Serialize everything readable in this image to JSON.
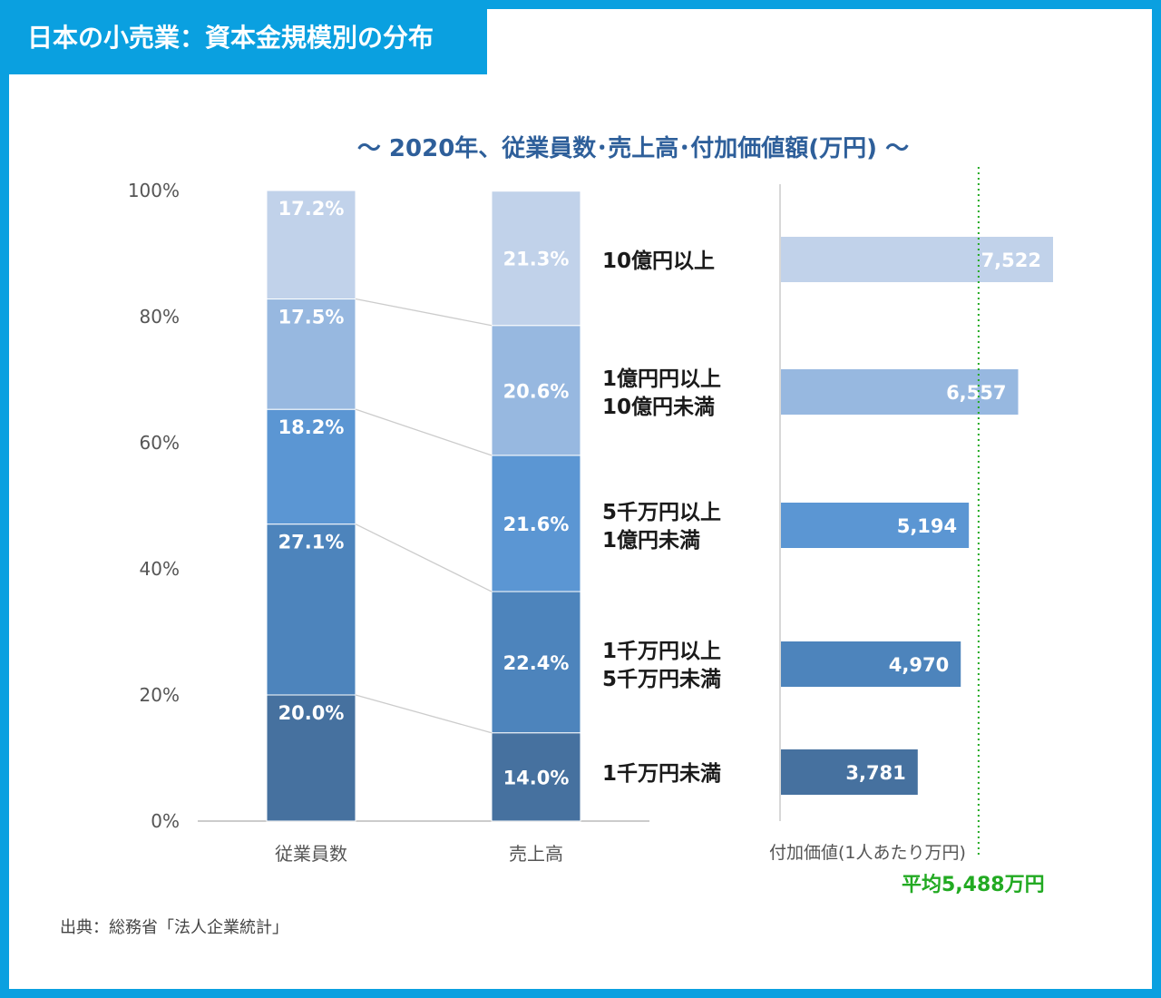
{
  "header": {
    "title": "日本の小売業：資本金規模別の分布"
  },
  "source": "出典：総務省「法人企業統計」",
  "chart_data": {
    "type": "bar",
    "title": "～ 2020年、従業員数･売上高･付加価値額(万円) ～",
    "stacked": {
      "ylim": [
        0,
        100
      ],
      "yticks": [
        "0%",
        "20%",
        "40%",
        "60%",
        "80%",
        "100%"
      ],
      "categories": [
        "従業員数",
        "売上高"
      ],
      "series": [
        {
          "name": "1千万円未満",
          "values": [
            20.0,
            14.0
          ],
          "labels": [
            "20.0%",
            "14.0%"
          ],
          "color": "#46719f"
        },
        {
          "name": "1千万円以上5千万円未満",
          "values": [
            27.1,
            22.4
          ],
          "labels": [
            "27.1%",
            "22.4%"
          ],
          "color": "#4d84bc"
        },
        {
          "name": "5千万円以上1億円未満",
          "values": [
            18.2,
            21.6
          ],
          "labels": [
            "18.2%",
            "21.6%"
          ],
          "color": "#5b96d3"
        },
        {
          "name": "1億円円以上10億円未満",
          "values": [
            17.5,
            20.6
          ],
          "labels": [
            "17.5%",
            "20.6%"
          ],
          "color": "#97b8e0"
        },
        {
          "name": "10億円以上",
          "values": [
            17.2,
            21.3
          ],
          "labels": [
            "17.2%",
            "21.3%"
          ],
          "color": "#c1d2ea"
        }
      ]
    },
    "size_labels": [
      [
        "10億円以上"
      ],
      [
        "1億円円以上",
        "10億円未満"
      ],
      [
        "5千万円以上",
        "1億円未満"
      ],
      [
        "1千万円以上",
        "5千万円未満"
      ],
      [
        "1千万円未満"
      ]
    ],
    "value_added": {
      "xlabel": "付加価値(1人あたり万円)",
      "xlim": [
        0,
        8000
      ],
      "values": [
        7522,
        6557,
        5194,
        4970,
        3781
      ],
      "labels": [
        "7,522",
        "6,557",
        "5,194",
        "4,970",
        "3,781"
      ],
      "colors": [
        "#c1d2ea",
        "#97b8e0",
        "#5b96d3",
        "#4d84bc",
        "#46719f"
      ],
      "average": 5488,
      "average_label": "平均5,488万円",
      "average_color": "#22aa22"
    }
  }
}
